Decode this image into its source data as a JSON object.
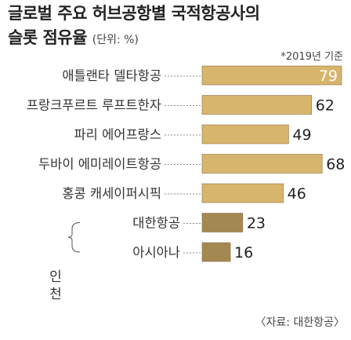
{
  "title_line1": "글로벌 주요 허브공항별 국적항공사의",
  "title_line2": "슬롯 점유율",
  "unit_note": "(단위: %)",
  "reference_year": "*2019년 기준",
  "source": "〈자료: 대한항공〉",
  "group_label_chars": [
    "인",
    "천"
  ],
  "colors": {
    "bar_light": "#d8b56d",
    "bar_dark": "#a48852",
    "bar_border": "#8c7140",
    "leader": "#888888"
  },
  "chart_data": {
    "type": "bar",
    "orientation": "horizontal",
    "categories": [
      "애틀랜타 델타항공",
      "프랑크푸르트 루프트한자",
      "파리 에어프랑스",
      "두바이 에미레이트항공",
      "홍콩 캐세이퍼시픽",
      "대한항공",
      "아시아나"
    ],
    "values": [
      79,
      62,
      49,
      68,
      46,
      23,
      16
    ],
    "category_group": [
      "",
      "",
      "",
      "",
      "",
      "인천",
      "인천"
    ],
    "value_labels": [
      "79",
      "62",
      "49",
      "68",
      "46",
      "23",
      "16"
    ],
    "value_label_position": [
      "inside",
      "outside",
      "outside",
      "outside",
      "outside",
      "outside",
      "outside"
    ],
    "bar_colors": [
      "#d8b56d",
      "#d8b56d",
      "#d8b56d",
      "#d8b56d",
      "#d8b56d",
      "#a48852",
      "#a48852"
    ],
    "unit": "%",
    "xlim": [
      0,
      79
    ],
    "grid": false
  }
}
